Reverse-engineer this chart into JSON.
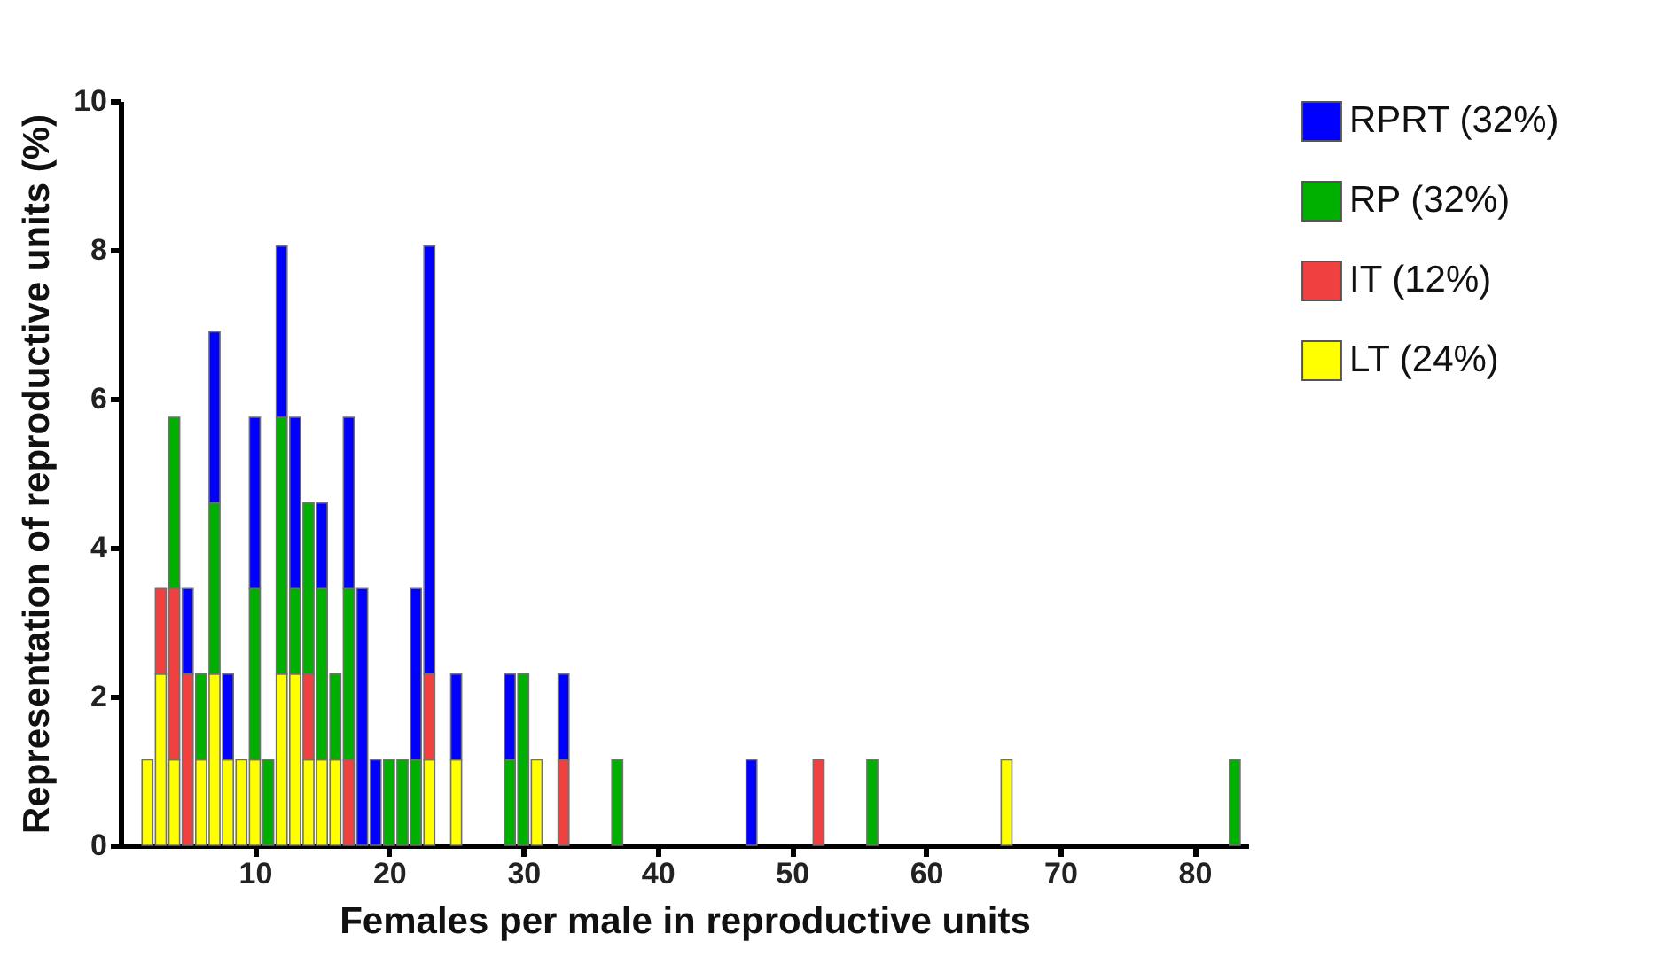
{
  "chart_data": {
    "type": "bar",
    "stacked": true,
    "xlabel": "Females per male in reproductive units",
    "ylabel": "Representation of reproductive units (%)",
    "x": [
      2,
      3,
      4,
      5,
      6,
      7,
      8,
      9,
      10,
      11,
      12,
      13,
      14,
      15,
      16,
      17,
      18,
      19,
      20,
      21,
      22,
      23,
      25,
      29,
      30,
      31,
      33,
      37,
      47,
      52,
      56,
      66,
      83
    ],
    "series": [
      {
        "name": "LT (24%)",
        "color": "#ffff00",
        "values": [
          1.15,
          2.3,
          1.15,
          null,
          1.15,
          2.3,
          1.15,
          1.15,
          1.15,
          null,
          2.3,
          2.3,
          1.15,
          1.15,
          1.15,
          null,
          null,
          null,
          null,
          null,
          null,
          1.15,
          1.15,
          null,
          null,
          1.15,
          null,
          null,
          null,
          null,
          null,
          1.15,
          null
        ]
      },
      {
        "name": "IT (12%)",
        "color": "#f04040",
        "values": [
          null,
          1.15,
          2.3,
          2.3,
          null,
          null,
          null,
          null,
          null,
          null,
          null,
          null,
          1.15,
          null,
          null,
          1.15,
          null,
          null,
          null,
          null,
          null,
          1.15,
          null,
          null,
          null,
          null,
          1.15,
          null,
          null,
          1.15,
          null,
          null,
          null
        ]
      },
      {
        "name": "RP (32%)",
        "color": "#00b000",
        "values": [
          null,
          null,
          2.3,
          null,
          1.15,
          2.3,
          null,
          null,
          2.3,
          1.15,
          3.45,
          1.15,
          2.3,
          2.3,
          1.15,
          2.3,
          null,
          null,
          1.15,
          1.15,
          1.15,
          null,
          null,
          1.15,
          2.3,
          null,
          null,
          1.15,
          null,
          null,
          1.15,
          null,
          1.15
        ]
      },
      {
        "name": "RPRT (32%)",
        "color": "#0000ff",
        "values": [
          null,
          null,
          null,
          1.15,
          null,
          2.3,
          1.15,
          null,
          2.3,
          null,
          2.3,
          2.3,
          null,
          1.15,
          null,
          2.3,
          3.45,
          1.15,
          null,
          null,
          2.3,
          5.75,
          1.15,
          1.15,
          null,
          null,
          1.15,
          null,
          1.15,
          null,
          null,
          null,
          null
        ]
      }
    ],
    "xlim": [
      0,
      84
    ],
    "xticks": [
      10,
      20,
      30,
      40,
      50,
      60,
      70,
      80
    ],
    "ylim": [
      0,
      10
    ],
    "yticks": [
      0,
      2,
      4,
      6,
      8,
      10
    ],
    "grid": false,
    "legend": "top right"
  }
}
